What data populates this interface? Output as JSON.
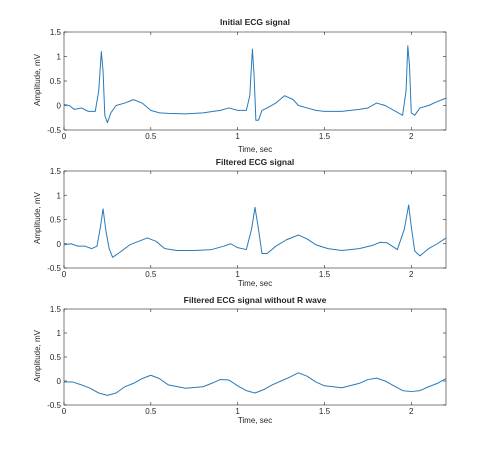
{
  "colors": {
    "line": "#2a7ab8",
    "axis": "#262626",
    "background": "#ffffff"
  },
  "chart_data": [
    {
      "type": "line",
      "title": "Initial ECG signal",
      "xlabel": "Time, sec",
      "ylabel": "Amplitude, mV",
      "xlim": [
        0,
        2.2
      ],
      "ylim": [
        -0.5,
        1.5
      ],
      "xticks": [
        0,
        0.5,
        1,
        1.5,
        2
      ],
      "xtick_labels": [
        "0",
        "0.5",
        "1",
        "1.5",
        "2"
      ],
      "yticks": [
        -0.5,
        0,
        0.5,
        1,
        1.5
      ],
      "ytick_labels": [
        "-0.5",
        "0",
        "0.5",
        "1",
        "1.5"
      ],
      "grid": false,
      "series": [
        {
          "x": [
            0,
            0.03,
            0.06,
            0.1,
            0.14,
            0.18,
            0.2,
            0.215,
            0.225,
            0.235,
            0.25,
            0.27,
            0.3,
            0.35,
            0.4,
            0.45,
            0.5,
            0.55,
            0.6,
            0.7,
            0.8,
            0.9,
            0.95,
            1.0,
            1.05,
            1.07,
            1.085,
            1.095,
            1.105,
            1.12,
            1.14,
            1.17,
            1.22,
            1.27,
            1.32,
            1.35,
            1.4,
            1.45,
            1.5,
            1.6,
            1.7,
            1.75,
            1.8,
            1.85,
            1.9,
            1.95,
            1.97,
            1.98,
            1.99,
            2.0,
            2.02,
            2.05,
            2.1,
            2.15,
            2.2
          ],
          "y": [
            0.02,
            0.0,
            -0.08,
            -0.05,
            -0.12,
            -0.12,
            0.3,
            1.1,
            0.7,
            -0.2,
            -0.35,
            -0.15,
            0.0,
            0.05,
            0.12,
            0.05,
            -0.1,
            -0.15,
            -0.16,
            -0.17,
            -0.15,
            -0.1,
            -0.05,
            -0.1,
            -0.1,
            0.2,
            1.15,
            0.6,
            -0.3,
            -0.3,
            -0.1,
            -0.05,
            0.05,
            0.2,
            0.12,
            0.0,
            -0.05,
            -0.1,
            -0.12,
            -0.12,
            -0.08,
            -0.05,
            0.05,
            0.0,
            -0.1,
            -0.2,
            0.3,
            1.22,
            0.8,
            -0.15,
            -0.2,
            -0.05,
            0.0,
            0.08,
            0.15
          ]
        }
      ]
    },
    {
      "type": "line",
      "title": "Filtered ECG signal",
      "xlabel": "Time, sec",
      "ylabel": "Amplitude, mV",
      "xlim": [
        0,
        2.2
      ],
      "ylim": [
        -0.5,
        1.5
      ],
      "xticks": [
        0,
        0.5,
        1,
        1.5,
        2
      ],
      "xtick_labels": [
        "0",
        "0.5",
        "1",
        "1.5",
        "2"
      ],
      "yticks": [
        -0.5,
        0,
        0.5,
        1,
        1.5
      ],
      "ytick_labels": [
        "-0.5",
        "0",
        "0.5",
        "1",
        "1.5"
      ],
      "grid": false,
      "series": [
        {
          "x": [
            0,
            0.04,
            0.08,
            0.12,
            0.16,
            0.19,
            0.21,
            0.225,
            0.24,
            0.26,
            0.28,
            0.32,
            0.38,
            0.43,
            0.48,
            0.53,
            0.58,
            0.65,
            0.75,
            0.85,
            0.92,
            0.96,
            1.0,
            1.05,
            1.08,
            1.1,
            1.12,
            1.14,
            1.17,
            1.22,
            1.28,
            1.35,
            1.4,
            1.45,
            1.52,
            1.6,
            1.7,
            1.78,
            1.82,
            1.86,
            1.92,
            1.96,
            1.985,
            2.0,
            2.02,
            2.05,
            2.1,
            2.15,
            2.2
          ],
          "y": [
            -0.02,
            0.0,
            -0.05,
            -0.05,
            -0.1,
            -0.05,
            0.35,
            0.72,
            0.3,
            -0.1,
            -0.28,
            -0.18,
            -0.02,
            0.05,
            0.12,
            0.05,
            -0.1,
            -0.14,
            -0.14,
            -0.12,
            -0.05,
            0.0,
            -0.08,
            -0.12,
            0.3,
            0.75,
            0.3,
            -0.2,
            -0.2,
            -0.05,
            0.08,
            0.18,
            0.1,
            -0.02,
            -0.1,
            -0.14,
            -0.1,
            -0.03,
            0.03,
            0.02,
            -0.12,
            0.3,
            0.8,
            0.35,
            -0.15,
            -0.25,
            -0.1,
            0.0,
            0.12
          ]
        }
      ]
    },
    {
      "type": "line",
      "title": "Filtered ECG signal without R wave",
      "xlabel": "Time, sec",
      "ylabel": "Amplitude, mV",
      "xlim": [
        0,
        2.2
      ],
      "ylim": [
        -0.5,
        1.5
      ],
      "xticks": [
        0,
        0.5,
        1,
        1.5,
        2
      ],
      "xtick_labels": [
        "0",
        "0.5",
        "1",
        "1.5",
        "2"
      ],
      "yticks": [
        -0.5,
        0,
        0.5,
        1,
        1.5
      ],
      "ytick_labels": [
        "-0.5",
        "0",
        "0.5",
        "1",
        "1.5"
      ],
      "grid": false,
      "series": [
        {
          "x": [
            0,
            0.05,
            0.1,
            0.15,
            0.2,
            0.25,
            0.3,
            0.35,
            0.4,
            0.45,
            0.5,
            0.55,
            0.6,
            0.7,
            0.8,
            0.85,
            0.9,
            0.95,
            1.0,
            1.05,
            1.1,
            1.15,
            1.2,
            1.25,
            1.3,
            1.35,
            1.4,
            1.45,
            1.5,
            1.6,
            1.7,
            1.75,
            1.8,
            1.85,
            1.9,
            1.95,
            2.0,
            2.05,
            2.1,
            2.15,
            2.2
          ],
          "y": [
            -0.02,
            -0.02,
            -0.08,
            -0.15,
            -0.25,
            -0.3,
            -0.25,
            -0.12,
            -0.05,
            0.05,
            0.12,
            0.05,
            -0.08,
            -0.15,
            -0.12,
            -0.05,
            0.03,
            0.02,
            -0.1,
            -0.2,
            -0.25,
            -0.18,
            -0.08,
            0.0,
            0.08,
            0.17,
            0.1,
            -0.02,
            -0.1,
            -0.14,
            -0.05,
            0.03,
            0.06,
            0.0,
            -0.1,
            -0.2,
            -0.22,
            -0.2,
            -0.12,
            -0.05,
            0.05
          ]
        }
      ]
    }
  ]
}
